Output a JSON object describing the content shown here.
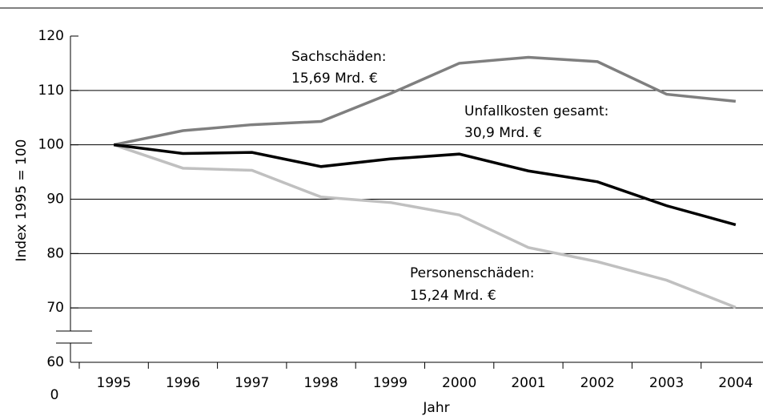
{
  "chart_data": {
    "type": "line",
    "x_label": "Jahr",
    "y_label": "Index 1995 = 100",
    "categories": [
      "1995",
      "1996",
      "1997",
      "1998",
      "1999",
      "2000",
      "2001",
      "2002",
      "2003",
      "2004"
    ],
    "series": [
      {
        "name": "Sachschäden:",
        "total": "15,69 Mrd. €",
        "color": "#7f7f7f",
        "values": [
          100,
          102.6,
          103.7,
          104.3,
          109.4,
          115,
          116.1,
          115.3,
          109.3,
          108
        ]
      },
      {
        "name": "Unfallkosten gesamt:",
        "total": "30,9 Mrd. €",
        "color": "#000000",
        "values": [
          100,
          98.4,
          98.6,
          96,
          97.4,
          98.3,
          95.2,
          93.2,
          88.8,
          85.3
        ]
      },
      {
        "name": "Personenschäden:",
        "total": "15,24 Mrd. €",
        "color": "#c0c0c0",
        "values": [
          100,
          95.7,
          95.3,
          90.4,
          89.4,
          87.1,
          81.1,
          78.5,
          75.1,
          70.1
        ]
      }
    ],
    "ylim": [
      60,
      120
    ],
    "yticks": [
      60,
      70,
      80,
      90,
      100,
      110,
      120
    ],
    "y_break_label": "0",
    "grid": true
  }
}
